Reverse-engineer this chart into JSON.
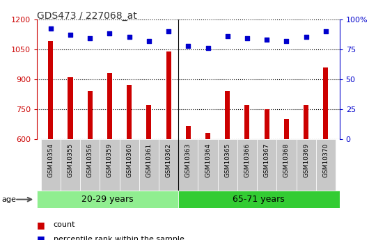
{
  "title": "GDS473 / 227068_at",
  "samples": [
    "GSM10354",
    "GSM10355",
    "GSM10356",
    "GSM10359",
    "GSM10360",
    "GSM10361",
    "GSM10362",
    "GSM10363",
    "GSM10364",
    "GSM10365",
    "GSM10366",
    "GSM10367",
    "GSM10368",
    "GSM10369",
    "GSM10370"
  ],
  "counts": [
    1090,
    910,
    840,
    930,
    870,
    770,
    1040,
    665,
    630,
    840,
    770,
    750,
    700,
    770,
    960
  ],
  "percentile_ranks": [
    92,
    87,
    84,
    88,
    85,
    82,
    90,
    78,
    76,
    86,
    84,
    83,
    82,
    85,
    90
  ],
  "ylim_left": [
    600,
    1200
  ],
  "ylim_right": [
    0,
    100
  ],
  "yticks_left": [
    600,
    750,
    900,
    1050,
    1200
  ],
  "yticks_right": [
    0,
    25,
    50,
    75,
    100
  ],
  "group1_label": "20-29 years",
  "group2_label": "65-71 years",
  "group1_count": 7,
  "group2_count": 8,
  "age_label": "age",
  "legend_count": "count",
  "legend_pct": "percentile rank within the sample",
  "bar_color": "#CC0000",
  "dot_color": "#0000CC",
  "group1_color": "#90EE90",
  "group2_color": "#33CC33",
  "tick_bg_color": "#C8C8C8",
  "plot_bg_color": "#FFFFFF",
  "title_color": "#333333",
  "left_axis_color": "#CC0000",
  "right_axis_color": "#0000CC",
  "bar_width": 0.25
}
